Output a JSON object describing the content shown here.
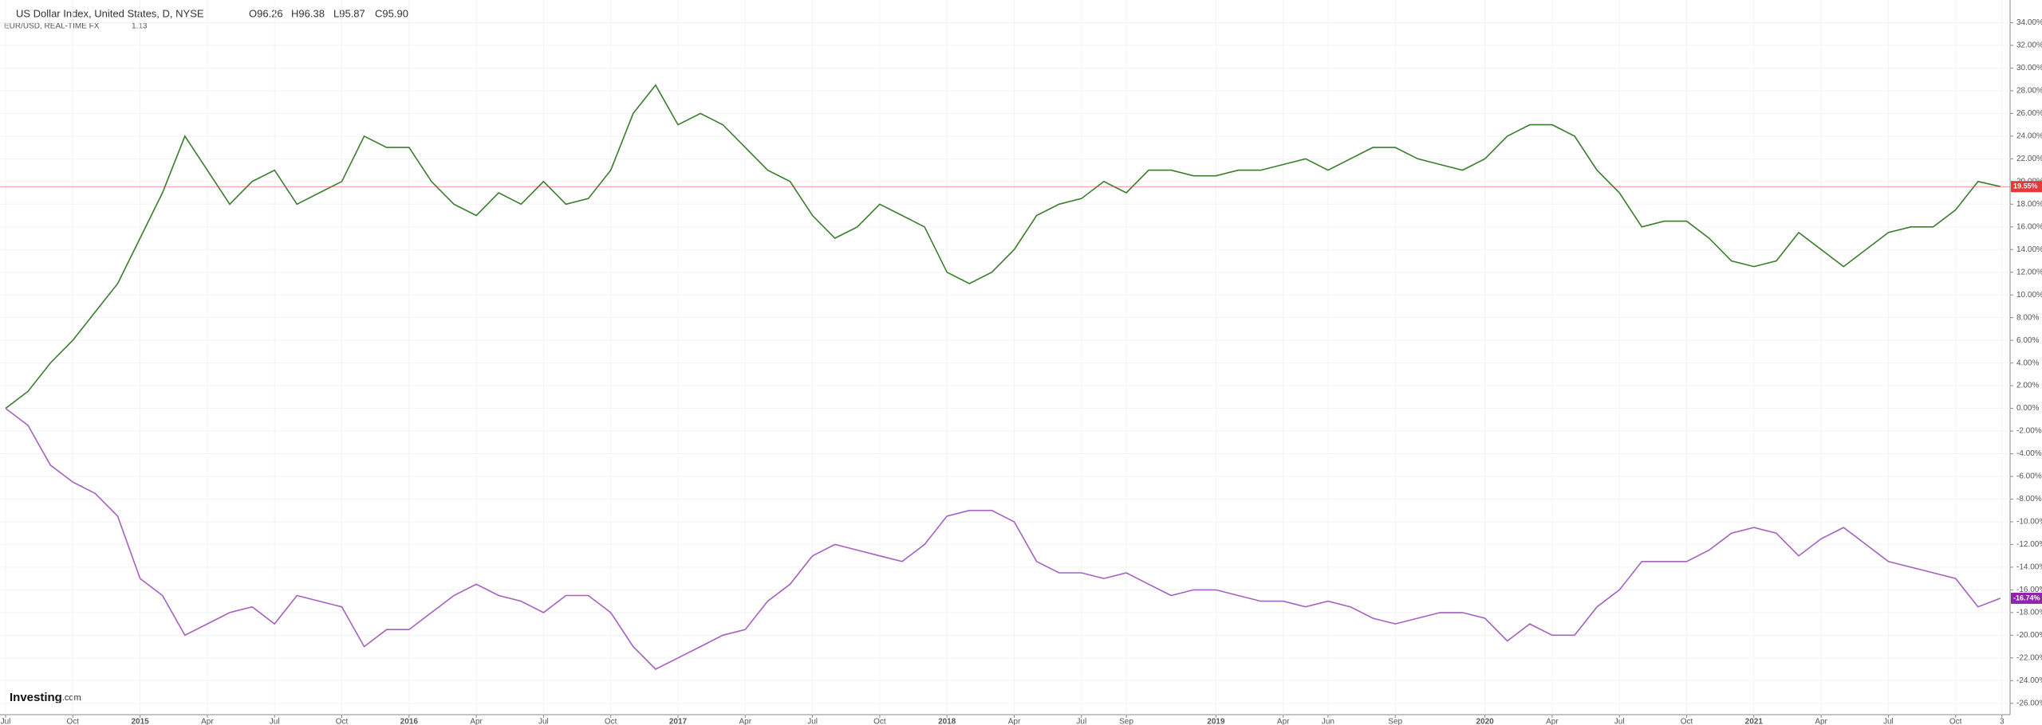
{
  "chart_data": {
    "type": "line",
    "title": "US Dollar Index, United States, D, NYSE",
    "ohlc": [
      "O96.26",
      "H96.38",
      "L95.87",
      "C95.90"
    ],
    "subtitle": "EUR/USD, REAL-TIME FX",
    "subtitle_value": "1.13",
    "logo": "Investing",
    "logo_suffix": ".com",
    "x": [
      "2014-07",
      "2014-08",
      "2014-09",
      "2014-10",
      "2014-11",
      "2014-12",
      "2015-01",
      "2015-02",
      "2015-03",
      "2015-04",
      "2015-05",
      "2015-06",
      "2015-07",
      "2015-08",
      "2015-09",
      "2015-10",
      "2015-11",
      "2015-12",
      "2016-01",
      "2016-02",
      "2016-03",
      "2016-04",
      "2016-05",
      "2016-06",
      "2016-07",
      "2016-08",
      "2016-09",
      "2016-10",
      "2016-11",
      "2016-12",
      "2017-01",
      "2017-02",
      "2017-03",
      "2017-04",
      "2017-05",
      "2017-06",
      "2017-07",
      "2017-08",
      "2017-09",
      "2017-10",
      "2017-11",
      "2017-12",
      "2018-01",
      "2018-02",
      "2018-03",
      "2018-04",
      "2018-05",
      "2018-06",
      "2018-07",
      "2018-08",
      "2018-09",
      "2018-10",
      "2018-11",
      "2018-12",
      "2019-01",
      "2019-02",
      "2019-03",
      "2019-04",
      "2019-05",
      "2019-06",
      "2019-07",
      "2019-08",
      "2019-09",
      "2019-10",
      "2019-11",
      "2019-12",
      "2020-01",
      "2020-02",
      "2020-03",
      "2020-04",
      "2020-05",
      "2020-06",
      "2020-07",
      "2020-08",
      "2020-09",
      "2020-10",
      "2020-11",
      "2020-12",
      "2021-01",
      "2021-02",
      "2021-03",
      "2021-04",
      "2021-05",
      "2021-06",
      "2021-07",
      "2021-08",
      "2021-09",
      "2021-10",
      "2021-11",
      "2021-12"
    ],
    "series": [
      {
        "name": "US Dollar Index",
        "color": "#3a7d2c",
        "last_value_label": "19.55%",
        "label_color": "#e53935",
        "values": [
          0,
          1.5,
          4,
          6,
          8.5,
          11,
          15,
          19,
          24,
          21,
          18,
          20,
          21,
          18,
          19,
          20,
          24,
          23,
          23,
          20,
          18,
          17,
          19,
          18,
          20,
          18,
          18.5,
          21,
          26,
          28.5,
          25,
          26,
          25,
          23,
          21,
          20,
          17,
          15,
          16,
          18,
          17,
          16,
          12,
          11,
          12,
          14,
          17,
          18,
          18.5,
          20,
          19,
          21,
          21,
          20.5,
          20.5,
          21,
          21,
          21.5,
          22,
          21,
          22,
          23,
          23,
          22,
          21.5,
          21,
          22,
          24,
          25,
          25,
          24,
          21,
          19,
          16,
          16.5,
          16.5,
          15,
          13,
          12.5,
          13,
          15.5,
          14,
          12.5,
          14,
          15.5,
          16,
          16,
          17.5,
          20,
          19.55
        ]
      },
      {
        "name": "EUR/USD",
        "color": "#a461c0",
        "last_value_label": "-16.74%",
        "label_color": "#8e24aa",
        "values": [
          0,
          -1.5,
          -5,
          -6.5,
          -7.5,
          -9.5,
          -15,
          -16.5,
          -20,
          -19,
          -18,
          -17.5,
          -19,
          -16.5,
          -17,
          -17.5,
          -21,
          -19.5,
          -19.5,
          -18,
          -16.5,
          -15.5,
          -16.5,
          -17,
          -18,
          -16.5,
          -16.5,
          -18,
          -21,
          -23,
          -22,
          -21,
          -20,
          -19.5,
          -17,
          -15.5,
          -13,
          -12,
          -12.5,
          -13,
          -13.5,
          -12,
          -9.5,
          -9,
          -9,
          -10,
          -13.5,
          -14.5,
          -14.5,
          -15,
          -14.5,
          -15.5,
          -16.5,
          -16,
          -16,
          -16.5,
          -17,
          -17,
          -17.5,
          -17,
          -17.5,
          -18.5,
          -19,
          -18.5,
          -18,
          -18,
          -18.5,
          -20.5,
          -19,
          -20,
          -20,
          -17.5,
          -16,
          -13.5,
          -13.5,
          -13.5,
          -12.5,
          -11,
          -10.5,
          -11,
          -13,
          -11.5,
          -10.5,
          -12,
          -13.5,
          -14,
          -14.5,
          -15,
          -17.5,
          -16.74
        ]
      }
    ],
    "ylim": [
      -27,
      36
    ],
    "yticks": [
      {
        "value": -26,
        "label": "-26.00%"
      },
      {
        "value": -24,
        "label": "-24.00%"
      },
      {
        "value": -22,
        "label": "-22.00%"
      },
      {
        "value": -20,
        "label": "-20.00%"
      },
      {
        "value": -18,
        "label": "-18.00%"
      },
      {
        "value": -16,
        "label": "-16.00%"
      },
      {
        "value": -14,
        "label": "-14.00%"
      },
      {
        "value": -12,
        "label": "-12.00%"
      },
      {
        "value": -10,
        "label": "-10.00%"
      },
      {
        "value": -8,
        "label": "-8.00%"
      },
      {
        "value": -6,
        "label": "-6.00%"
      },
      {
        "value": -4,
        "label": "-4.00%"
      },
      {
        "value": -2,
        "label": "-2.00%"
      },
      {
        "value": 0,
        "label": "0.00%"
      },
      {
        "value": 2,
        "label": "2.00%"
      },
      {
        "value": 4,
        "label": "4.00%"
      },
      {
        "value": 6,
        "label": "6.00%"
      },
      {
        "value": 8,
        "label": "8.00%"
      },
      {
        "value": 10,
        "label": "10.00%"
      },
      {
        "value": 12,
        "label": "12.00%"
      },
      {
        "value": 14,
        "label": "14.00%"
      },
      {
        "value": 16,
        "label": "16.00%"
      },
      {
        "value": 18,
        "label": "18.00%"
      },
      {
        "value": 20,
        "label": "20.00%"
      },
      {
        "value": 22,
        "label": "22.00%"
      },
      {
        "value": 24,
        "label": "24.00%"
      },
      {
        "value": 26,
        "label": "26.00%"
      },
      {
        "value": 28,
        "label": "28.00%"
      },
      {
        "value": 30,
        "label": "30.00%"
      },
      {
        "value": 32,
        "label": "32.00%"
      },
      {
        "value": 34,
        "label": "34.00%"
      }
    ],
    "xticks": [
      {
        "value": "2014-07",
        "label": "Jul"
      },
      {
        "value": "2014-10",
        "label": "Oct"
      },
      {
        "value": "2015-01",
        "label": "2015"
      },
      {
        "value": "2015-04",
        "label": "Apr"
      },
      {
        "value": "2015-07",
        "label": "Jul"
      },
      {
        "value": "2015-10",
        "label": "Oct"
      },
      {
        "value": "2016-01",
        "label": "2016"
      },
      {
        "value": "2016-04",
        "label": "Apr"
      },
      {
        "value": "2016-07",
        "label": "Jul"
      },
      {
        "value": "2016-10",
        "label": "Oct"
      },
      {
        "value": "2017-01",
        "label": "2017"
      },
      {
        "value": "2017-04",
        "label": "Apr"
      },
      {
        "value": "2017-07",
        "label": "Jul"
      },
      {
        "value": "2017-10",
        "label": "Oct"
      },
      {
        "value": "2018-01",
        "label": "2018"
      },
      {
        "value": "2018-04",
        "label": "Apr"
      },
      {
        "value": "2018-07",
        "label": "Jul"
      },
      {
        "value": "2018-09",
        "label": "Sep"
      },
      {
        "value": "2019-01",
        "label": "2019"
      },
      {
        "value": "2019-04",
        "label": "Apr"
      },
      {
        "value": "2019-06",
        "label": "Jun"
      },
      {
        "value": "2019-09",
        "label": "Sep"
      },
      {
        "value": "2020-01",
        "label": "2020"
      },
      {
        "value": "2020-04",
        "label": "Apr"
      },
      {
        "value": "2020-07",
        "label": "Jul"
      },
      {
        "value": "2020-10",
        "label": "Oct"
      },
      {
        "value": "2021-01",
        "label": "2021"
      },
      {
        "value": "2021-04",
        "label": "Apr"
      },
      {
        "value": "2021-07",
        "label": "Jul"
      },
      {
        "value": "2021-10",
        "label": "Oct"
      },
      {
        "value": "2021-12-03",
        "label": "3"
      }
    ],
    "grid": true
  }
}
